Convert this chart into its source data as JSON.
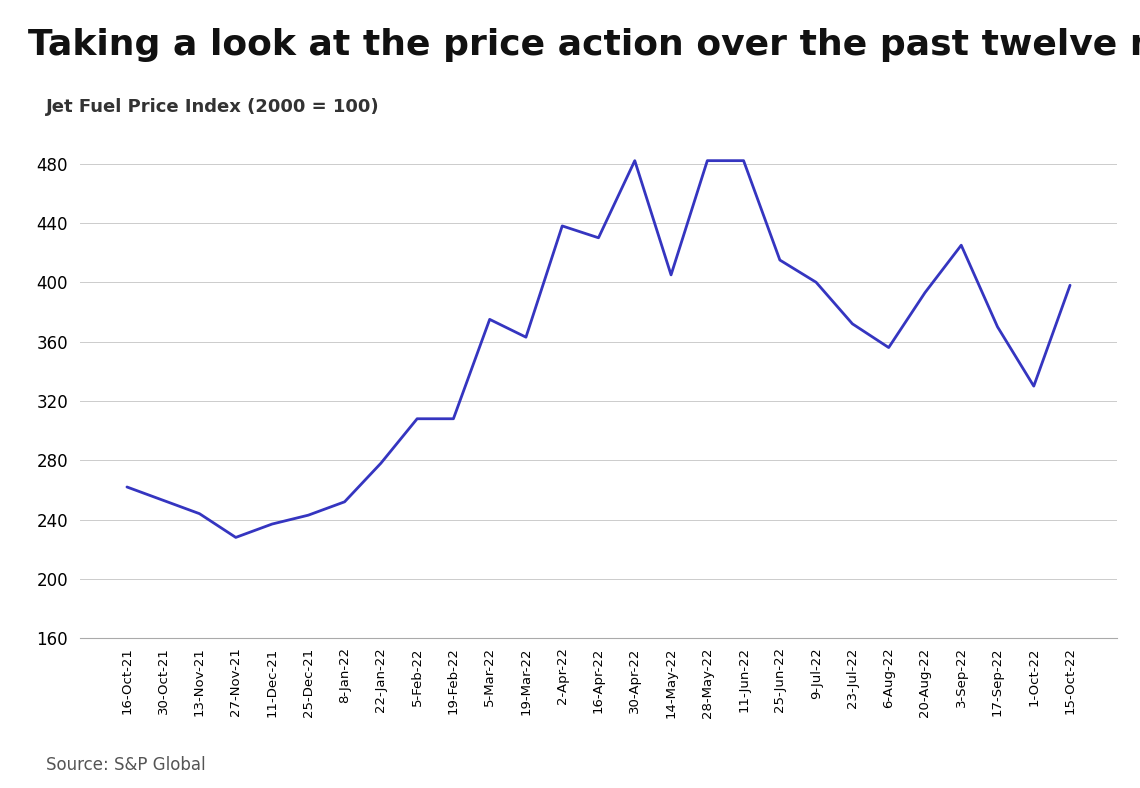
{
  "title": "Taking a look at the price action over the past twelve months:",
  "subtitle": "Jet Fuel Price Index (2000 = 100)",
  "source": "Source: S&P Global",
  "line_color": "#3535c0",
  "background_color": "#ffffff",
  "title_fontsize": 26,
  "subtitle_fontsize": 13,
  "source_fontsize": 12,
  "ylim": [
    160,
    500
  ],
  "yticks": [
    160,
    200,
    240,
    280,
    320,
    360,
    400,
    440,
    480
  ],
  "labels": [
    "16-Oct-21",
    "30-Oct-21",
    "13-Nov-21",
    "27-Nov-21",
    "11-Dec-21",
    "25-Dec-21",
    "8-Jan-22",
    "22-Jan-22",
    "5-Feb-22",
    "19-Feb-22",
    "5-Mar-22",
    "19-Mar-22",
    "2-Apr-22",
    "16-Apr-22",
    "30-Apr-22",
    "14-May-22",
    "28-May-22",
    "11-Jun-22",
    "25-Jun-22",
    "9-Jul-22",
    "23-Jul-22",
    "6-Aug-22",
    "20-Aug-22",
    "3-Sep-22",
    "17-Sep-22",
    "1-Oct-22",
    "15-Oct-22"
  ],
  "values": [
    262,
    253,
    244,
    228,
    237,
    243,
    252,
    278,
    308,
    308,
    375,
    363,
    438,
    430,
    482,
    405,
    482,
    482,
    415,
    400,
    372,
    356,
    393,
    425,
    370,
    330,
    398
  ]
}
